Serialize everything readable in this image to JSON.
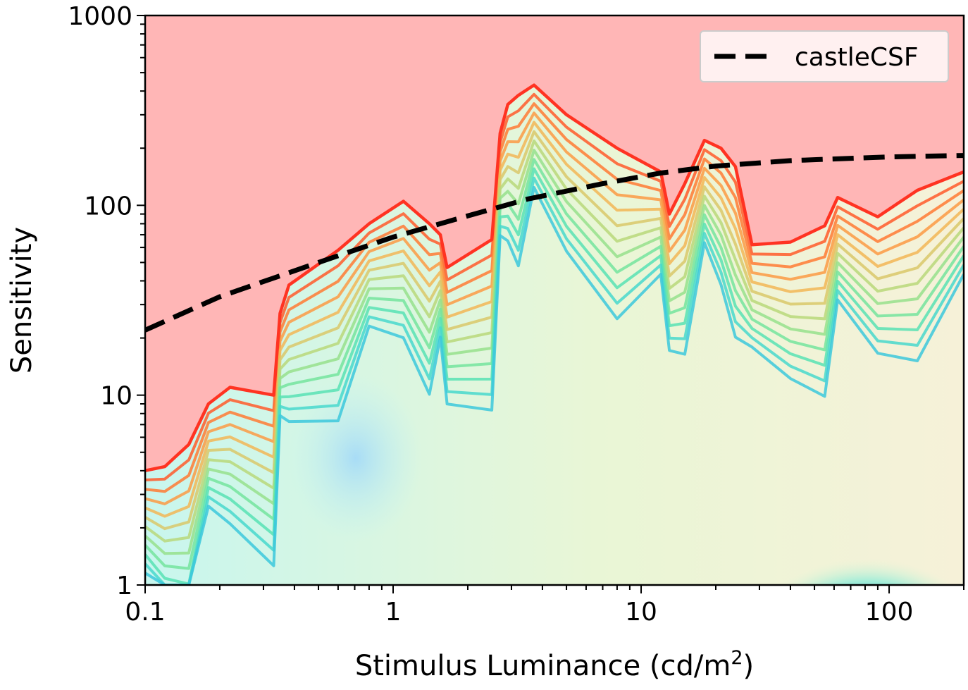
{
  "chart_data": {
    "type": "contour",
    "xlabel": "Stimulus Luminance (cd/m",
    "xlabel_sup": "2",
    "xlabel_close": ")",
    "ylabel": "Sensitivity",
    "x_scale": "log",
    "y_scale": "log",
    "xlim": [
      0.1,
      200
    ],
    "ylim": [
      1,
      1000
    ],
    "x_ticks": [
      0.1,
      1,
      10,
      100
    ],
    "x_tick_labels": [
      "0.1",
      "1",
      "10",
      "100"
    ],
    "y_ticks": [
      1,
      10,
      100,
      1000
    ],
    "y_tick_labels": [
      "1",
      "10",
      "100",
      "1000"
    ],
    "grid": false,
    "legend": {
      "position": "top-right",
      "entries": [
        "castleCSF"
      ]
    },
    "colors": {
      "background": "#ffb6b6",
      "castleCSF": "#000000",
      "outer_contour": "#ff3322"
    },
    "series": [
      {
        "name": "castleCSF",
        "style": "dashed",
        "x": [
          0.1,
          0.2,
          0.5,
          1,
          2,
          3.5,
          7,
          12,
          20,
          40,
          100,
          200
        ],
        "y": [
          22,
          33,
          50,
          68,
          88,
          108,
          130,
          148,
          161,
          172,
          180,
          183
        ]
      }
    ],
    "contour_outer_edge": {
      "x": [
        0.1,
        0.12,
        0.15,
        0.18,
        0.22,
        0.33,
        0.35,
        0.38,
        0.6,
        0.8,
        1.1,
        1.4,
        1.55,
        1.65,
        2.5,
        2.7,
        2.9,
        3.2,
        3.7,
        5,
        8,
        12,
        13,
        15,
        18,
        21,
        24,
        28,
        40,
        55,
        62,
        90,
        130,
        200
      ],
      "y": [
        4,
        4.2,
        5.5,
        9,
        11,
        10,
        27,
        38,
        58,
        80,
        105,
        80,
        70,
        47,
        66,
        240,
        340,
        380,
        430,
        300,
        200,
        150,
        90,
        130,
        220,
        200,
        160,
        62,
        64,
        78,
        110,
        87,
        120,
        150
      ]
    }
  }
}
